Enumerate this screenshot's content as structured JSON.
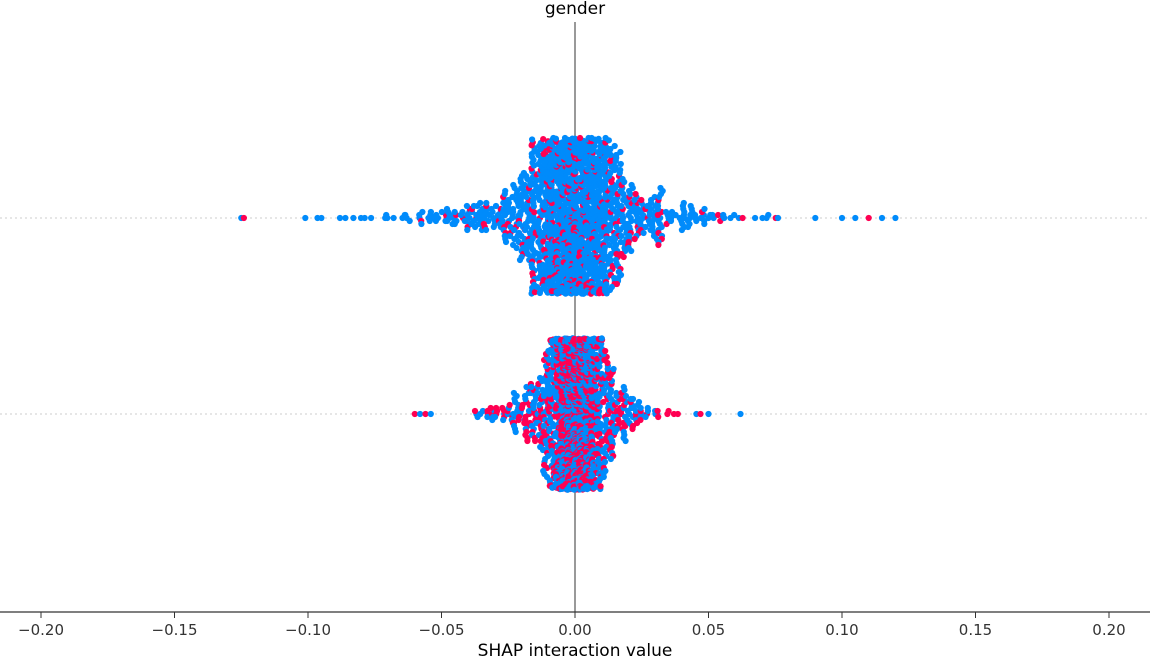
{
  "chart_data": {
    "type": "scatter",
    "subtype": "beeswarm",
    "title": "gender",
    "xlabel": "SHAP interaction value",
    "xlim": [
      -0.22,
      0.22
    ],
    "x_ticks": [
      -0.2,
      -0.15,
      -0.1,
      -0.05,
      0.0,
      0.05,
      0.1,
      0.15,
      0.2
    ],
    "x_tick_labels": [
      "−0.20",
      "−0.15",
      "−0.10",
      "−0.05",
      "0.00",
      "0.05",
      "0.10",
      "0.15",
      "0.20"
    ],
    "grid": false,
    "colors": {
      "high": "#ff0052",
      "low": "#008bfb",
      "zero_line": "#999999",
      "row_guide": "#cccccc"
    },
    "rows": [
      {
        "min": -0.125,
        "max": 0.12,
        "core_spread": 0.01,
        "tail_spread": 0.03,
        "max_spread_up": 0.38,
        "max_spread_down": 0.36,
        "high_value_share": 0.15,
        "outliers_low": [
          -0.125,
          -0.124,
          -0.101,
          -0.095,
          -0.088,
          -0.086,
          -0.083
        ],
        "outliers_high": [
          0.09,
          0.1,
          0.105,
          0.11,
          0.115,
          0.12
        ]
      },
      {
        "min": -0.06,
        "max": 0.062,
        "core_spread": 0.005,
        "tail_spread": 0.015,
        "max_spread_up": 0.36,
        "max_spread_down": 0.36,
        "high_value_share": 0.45,
        "outliers_low": [
          -0.06,
          -0.058,
          -0.056,
          -0.054
        ],
        "outliers_high": [
          0.047,
          0.05,
          0.062
        ]
      }
    ]
  }
}
